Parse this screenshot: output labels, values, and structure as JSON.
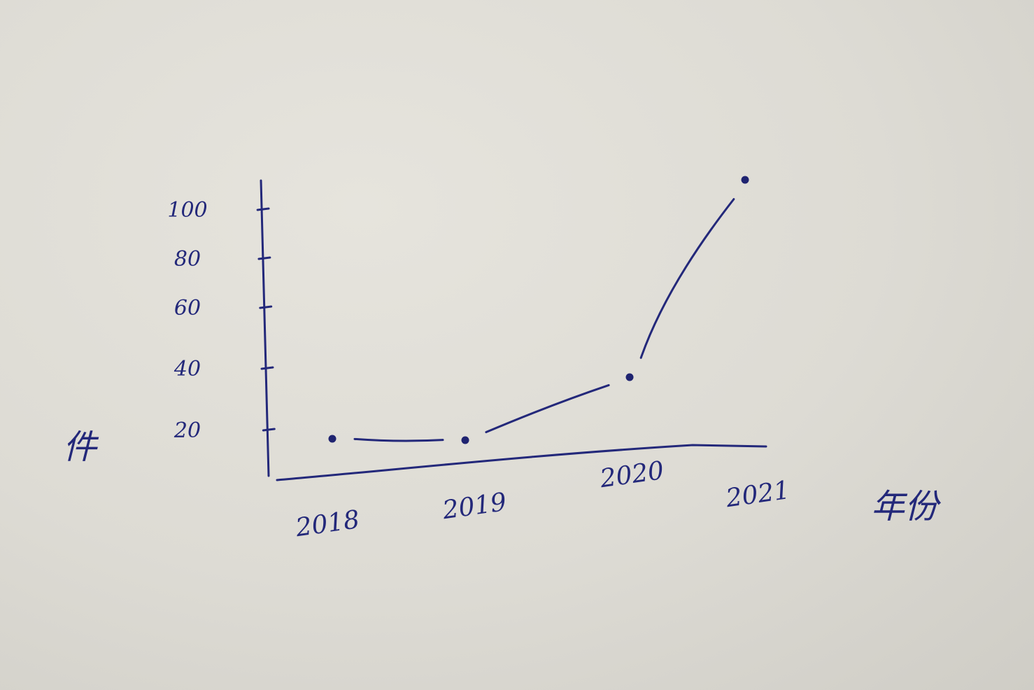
{
  "chart_data": {
    "type": "line",
    "xlabel": "年份",
    "ylabel": "件",
    "categories": [
      "2018",
      "2019",
      "2020",
      "2021"
    ],
    "values": [
      20,
      20,
      40,
      120
    ],
    "y_ticks": [
      "20",
      "40",
      "60",
      "80",
      "100"
    ],
    "ylim": [
      0,
      130
    ],
    "grid": false,
    "colors": {
      "ink": "#23287a",
      "paper": "#dddbd4"
    }
  }
}
